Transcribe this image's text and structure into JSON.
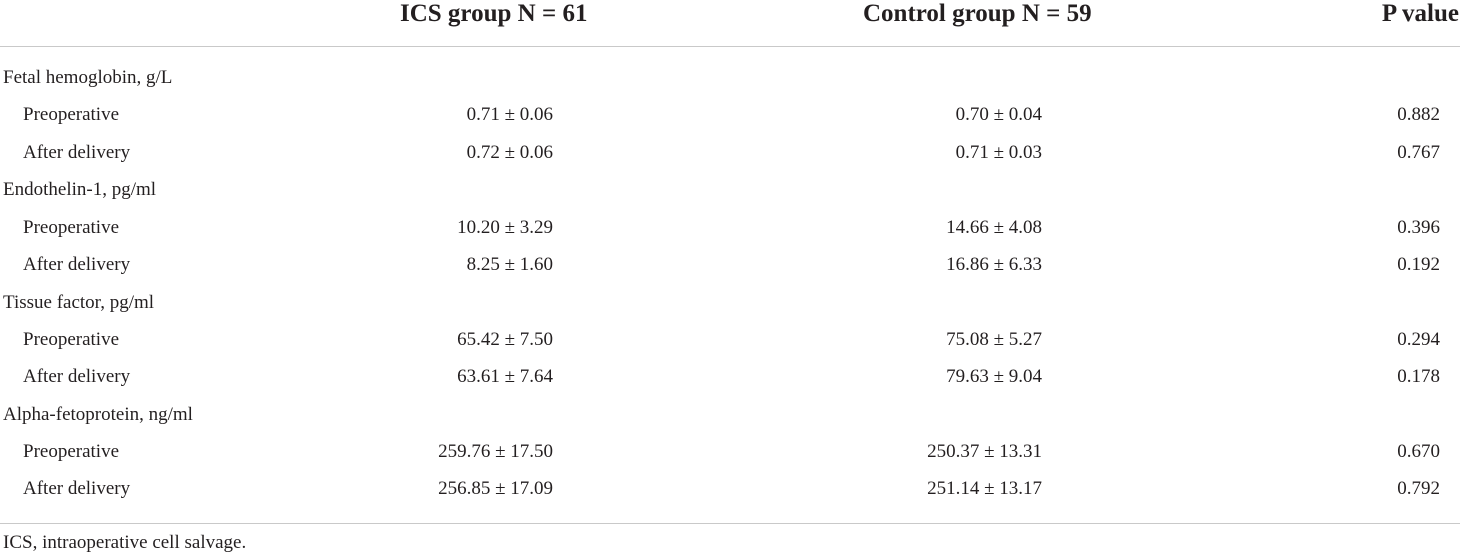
{
  "table": {
    "headers": {
      "ics": "ICS group N = 61",
      "control": "Control group N = 59",
      "p": "P value"
    },
    "groups": [
      {
        "label": "Fetal hemoglobin, g/L",
        "rows": [
          {
            "label": "Preoperative",
            "ics": "0.71 ± 0.06",
            "control": "0.70 ± 0.04",
            "p": "0.882"
          },
          {
            "label": "After delivery",
            "ics": "0.72 ± 0.06",
            "control": "0.71 ± 0.03",
            "p": "0.767"
          }
        ]
      },
      {
        "label": "Endothelin-1, pg/ml",
        "rows": [
          {
            "label": "Preoperative",
            "ics": "10.20 ± 3.29",
            "control": "14.66 ± 4.08",
            "p": "0.396"
          },
          {
            "label": "After delivery",
            "ics": "8.25 ± 1.60",
            "control": "16.86 ± 6.33",
            "p": "0.192"
          }
        ]
      },
      {
        "label": "Tissue factor, pg/ml",
        "rows": [
          {
            "label": "Preoperative",
            "ics": "65.42 ± 7.50",
            "control": "75.08 ± 5.27",
            "p": "0.294"
          },
          {
            "label": "After delivery",
            "ics": "63.61 ± 7.64",
            "control": "79.63 ± 9.04",
            "p": "0.178"
          }
        ]
      },
      {
        "label": "Alpha-fetoprotein, ng/ml",
        "rows": [
          {
            "label": "Preoperative",
            "ics": "259.76 ± 17.50",
            "control": "250.37 ± 13.31",
            "p": "0.670"
          },
          {
            "label": "After delivery",
            "ics": "256.85 ± 17.09",
            "control": "251.14 ± 13.17",
            "p": "0.792"
          }
        ]
      }
    ],
    "footnote": "ICS, intraoperative cell salvage."
  }
}
